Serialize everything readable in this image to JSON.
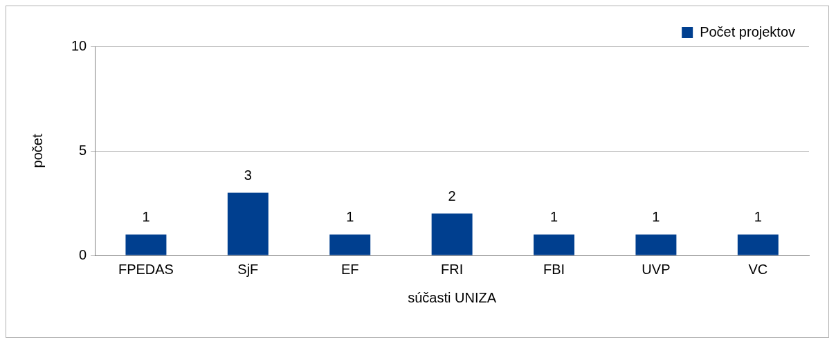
{
  "chart_data": {
    "type": "bar",
    "xlabel": "súčasti UNIZA",
    "ylabel": "počet",
    "categories": [
      "FPEDAS",
      "SjF",
      "EF",
      "FRI",
      "FBI",
      "UVP",
      "VC"
    ],
    "series": [
      {
        "name": "Počet projektov",
        "color": "#003f8f",
        "values": [
          1,
          3,
          1,
          2,
          1,
          1,
          1
        ]
      }
    ],
    "ylim": [
      0,
      10
    ],
    "yticks": [
      0,
      5,
      10
    ],
    "grid": "y",
    "legend": "top right",
    "data_labels": true
  }
}
